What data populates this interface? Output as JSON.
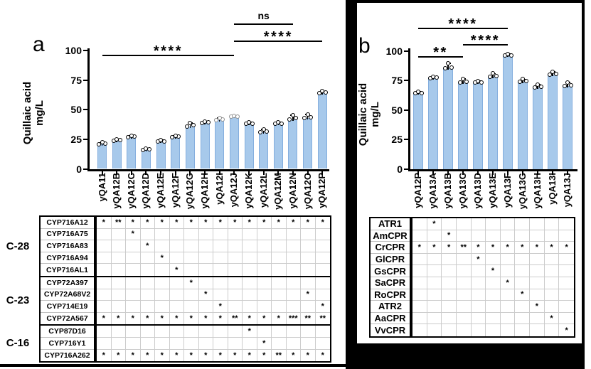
{
  "figure": {
    "panel_a": {
      "panel_label": "a",
      "y_axis_title_line1": "Quillaic acid",
      "y_axis_title_line2": "mg/L",
      "errors": [
        1.5,
        1,
        1,
        1,
        1.5,
        1,
        3,
        1,
        2,
        1,
        1.5,
        2.5,
        1.5,
        3.5,
        3,
        1.5
      ],
      "gray_dot_categories": [
        "yQA12I",
        "yQA12J"
      ],
      "enzyme_table": {
        "groups": [
          {
            "label": "C-28",
            "rows": [
              {
                "enzyme": "CYP716A12",
                "cells": [
                  "*",
                  "**",
                  "*",
                  "*",
                  "*",
                  "*",
                  "*",
                  "*",
                  "*",
                  "*",
                  "*",
                  "*",
                  "*",
                  "*",
                  "*",
                  "*"
                ]
              },
              {
                "enzyme": "CYP716A75",
                "cells": [
                  "",
                  "",
                  "*",
                  "",
                  "",
                  "",
                  "",
                  "",
                  "",
                  "",
                  "",
                  "",
                  "",
                  "",
                  "",
                  ""
                ]
              },
              {
                "enzyme": "CYP716A83",
                "cells": [
                  "",
                  "",
                  "",
                  "*",
                  "",
                  "",
                  "",
                  "",
                  "",
                  "",
                  "",
                  "",
                  "",
                  "",
                  "",
                  ""
                ]
              },
              {
                "enzyme": "CYP716A94",
                "cells": [
                  "",
                  "",
                  "",
                  "",
                  "*",
                  "",
                  "",
                  "",
                  "",
                  "",
                  "",
                  "",
                  "",
                  "",
                  "",
                  ""
                ]
              },
              {
                "enzyme": "CYP716AL1",
                "cells": [
                  "",
                  "",
                  "",
                  "",
                  "",
                  "*",
                  "",
                  "",
                  "",
                  "",
                  "",
                  "",
                  "",
                  "",
                  "",
                  ""
                ]
              }
            ]
          },
          {
            "label": "C-23",
            "rows": [
              {
                "enzyme": "CYP72A397",
                "cells": [
                  "",
                  "",
                  "",
                  "",
                  "",
                  "",
                  "*",
                  "",
                  "",
                  "",
                  "",
                  "",
                  "",
                  "",
                  "",
                  ""
                ]
              },
              {
                "enzyme": "CYP72A68V2",
                "cells": [
                  "",
                  "",
                  "",
                  "",
                  "",
                  "",
                  "",
                  "*",
                  "",
                  "",
                  "",
                  "",
                  "",
                  "",
                  "*",
                  ""
                ]
              },
              {
                "enzyme": "CYP714E19",
                "cells": [
                  "",
                  "",
                  "",
                  "",
                  "",
                  "",
                  "",
                  "",
                  "*",
                  "",
                  "",
                  "",
                  "",
                  "",
                  "",
                  "*"
                ]
              },
              {
                "enzyme": "CYP72A567",
                "cells": [
                  "*",
                  "*",
                  "*",
                  "*",
                  "*",
                  "*",
                  "*",
                  "*",
                  "*",
                  "**",
                  "*",
                  "*",
                  "*",
                  "***",
                  "**",
                  "**"
                ]
              }
            ]
          },
          {
            "label": "C-16",
            "rows": [
              {
                "enzyme": "CYP87D16",
                "cells": [
                  "",
                  "",
                  "",
                  "",
                  "",
                  "",
                  "",
                  "",
                  "",
                  "",
                  "*",
                  "",
                  "",
                  "",
                  "",
                  ""
                ]
              },
              {
                "enzyme": "CYP716Y1",
                "cells": [
                  "",
                  "",
                  "",
                  "",
                  "",
                  "",
                  "",
                  "",
                  "",
                  "",
                  "",
                  "*",
                  "",
                  "",
                  "",
                  ""
                ]
              },
              {
                "enzyme": "CYP716A262",
                "cells": [
                  "*",
                  "*",
                  "*",
                  "*",
                  "*",
                  "*",
                  "*",
                  "*",
                  "*",
                  "*",
                  "*",
                  "*",
                  "**",
                  "*",
                  "*",
                  "*"
                ]
              }
            ]
          }
        ]
      }
    },
    "panel_b": {
      "panel_label": "b",
      "y_axis_title_line1": "Quillaic acid",
      "y_axis_title_line2": "mg/L",
      "errors": [
        1.5,
        1,
        4.5,
        3.5,
        1.5,
        3,
        1.5,
        2,
        2.5,
        2.5,
        3.5
      ],
      "gray_dot_categories": [],
      "enzyme_table": {
        "groups": [
          {
            "label": "",
            "rows": [
              {
                "enzyme": "ATR1",
                "cells": [
                  "",
                  "*",
                  "",
                  "",
                  "",
                  "",
                  "",
                  "",
                  "",
                  "",
                  ""
                ]
              },
              {
                "enzyme": "AmCPR",
                "cells": [
                  "",
                  "",
                  "*",
                  "",
                  "",
                  "",
                  "",
                  "",
                  "",
                  "",
                  ""
                ]
              },
              {
                "enzyme": "CrCPR",
                "cells": [
                  "*",
                  "*",
                  "*",
                  "**",
                  "*",
                  "*",
                  "*",
                  "*",
                  "*",
                  "*",
                  "*"
                ]
              },
              {
                "enzyme": "GlCPR",
                "cells": [
                  "",
                  "",
                  "",
                  "",
                  "*",
                  "",
                  "",
                  "",
                  "",
                  "",
                  ""
                ]
              },
              {
                "enzyme": "GsCPR",
                "cells": [
                  "",
                  "",
                  "",
                  "",
                  "",
                  "*",
                  "",
                  "",
                  "",
                  "",
                  ""
                ]
              },
              {
                "enzyme": "SaCPR",
                "cells": [
                  "",
                  "",
                  "",
                  "",
                  "",
                  "",
                  "*",
                  "",
                  "",
                  "",
                  ""
                ]
              },
              {
                "enzyme": "RoCPR",
                "cells": [
                  "",
                  "",
                  "",
                  "",
                  "",
                  "",
                  "",
                  "*",
                  "",
                  "",
                  ""
                ]
              },
              {
                "enzyme": "ATR2",
                "cells": [
                  "",
                  "",
                  "",
                  "",
                  "",
                  "",
                  "",
                  "",
                  "*",
                  "",
                  ""
                ]
              },
              {
                "enzyme": "AaCPR",
                "cells": [
                  "",
                  "",
                  "",
                  "",
                  "",
                  "",
                  "",
                  "",
                  "",
                  "*",
                  ""
                ]
              },
              {
                "enzyme": "VvCPR",
                "cells": [
                  "",
                  "",
                  "",
                  "",
                  "",
                  "",
                  "",
                  "",
                  "",
                  "",
                  "*"
                ]
              }
            ]
          }
        ]
      }
    }
  },
  "chart_data": [
    {
      "type": "bar",
      "panel": "a",
      "title": "",
      "xlabel": "",
      "ylabel": "Quillaic acid mg/L",
      "ylim": [
        0,
        100
      ],
      "yticks": [
        0,
        25,
        50,
        75,
        100
      ],
      "bar_color": "#A7C9EB",
      "categories": [
        "yQA11",
        "yQA12B",
        "yQA12C",
        "yQA12D",
        "yQA12E",
        "yQA12F",
        "yQA12G",
        "yQA12H",
        "yQA12I",
        "yQA12J",
        "yQA12K",
        "yQA12L",
        "yQA12M",
        "yQA12N",
        "yQA12O",
        "yQA12P"
      ],
      "values": [
        21,
        24,
        27,
        16,
        23,
        27,
        36,
        39,
        41,
        44,
        38,
        31,
        38,
        42,
        43,
        64
      ],
      "significance": [
        {
          "label": "****",
          "from": "yQA11",
          "to": "yQA12J"
        },
        {
          "label": "ns",
          "from": "yQA12J",
          "to": "yQA12N"
        },
        {
          "label": "****",
          "from": "yQA12J",
          "to": "yQA12P"
        }
      ]
    },
    {
      "type": "bar",
      "panel": "b",
      "title": "",
      "xlabel": "",
      "ylabel": "Quillaic acid mg/L",
      "ylim": [
        0,
        100
      ],
      "yticks": [
        0,
        25,
        50,
        75,
        100
      ],
      "bar_color": "#A7C9EB",
      "categories": [
        "yQA12P",
        "yQA13A",
        "yQA13B",
        "yQA13C",
        "yQA13D",
        "yQA13E",
        "yQA13F",
        "yQA13G",
        "yQA13H",
        "yQA13I",
        "yQA13J"
      ],
      "values": [
        64,
        77,
        85,
        73,
        73,
        78,
        96,
        74,
        69,
        80,
        70
      ],
      "significance": [
        {
          "label": "**",
          "from": "yQA12P",
          "to": "yQA13C"
        },
        {
          "label": "****",
          "from": "yQA13C",
          "to": "yQA13F"
        },
        {
          "label": "****",
          "from": "yQA12P",
          "to": "yQA13F"
        }
      ]
    }
  ]
}
